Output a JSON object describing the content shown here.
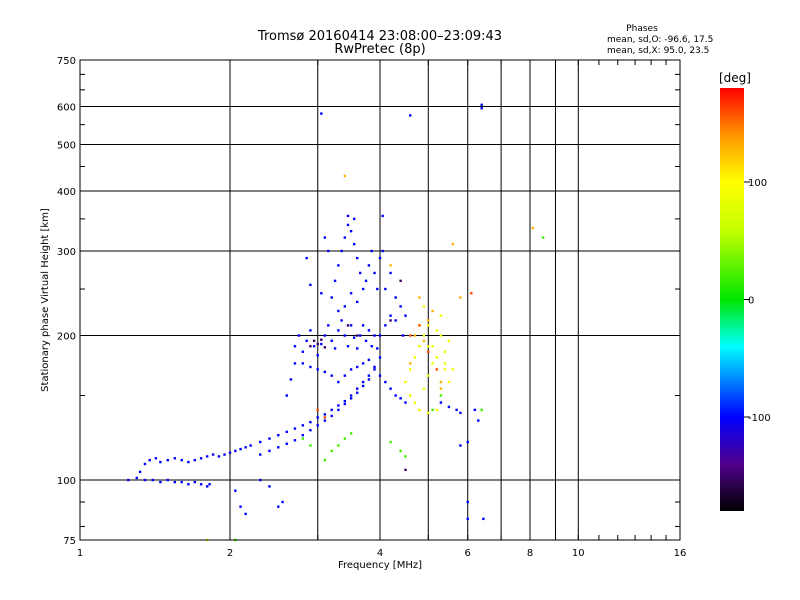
{
  "chart_data": {
    "type": "scatter",
    "title": "Tromsø 20160414 23:08:00–23:09:43",
    "subtitle": "RwPretec (8p)",
    "xlabel": "Frequency [MHz]",
    "ylabel": "Stationary phase Virtual Height [km]",
    "x_scale": "log",
    "y_scale": "log",
    "xlim": [
      1,
      16
    ],
    "ylim": [
      75,
      750
    ],
    "x_ticks": [
      1,
      2,
      4,
      6,
      8,
      10,
      16
    ],
    "x_tick_labels": [
      "1",
      "2",
      "4",
      "6",
      "8",
      "10",
      "16"
    ],
    "x_minor_gridlines": [
      3,
      5,
      7,
      9
    ],
    "y_ticks": [
      75,
      100,
      200,
      300,
      400,
      500,
      600,
      750
    ],
    "y_tick_labels": [
      "75",
      "100",
      "200",
      "300",
      "400",
      "500",
      "600",
      "750"
    ],
    "grid": true,
    "phase_header": "Phases",
    "phase_stats": [
      "mean, sd,O: -96.6, 17.5",
      "mean, sd,X:  95.0, 23.5"
    ],
    "colorbar": {
      "label": "[deg]",
      "range": [
        -180,
        180
      ],
      "ticks": [
        100,
        0,
        -100
      ],
      "tick_labels": [
        "100",
        "0",
        "-100"
      ],
      "colors": [
        "#ff0000",
        "#ff9900",
        "#ffff00",
        "#00ee00",
        "#00ffff",
        "#0000ff",
        "#330066",
        "#000000"
      ]
    },
    "series": [
      {
        "phase_deg": -100,
        "points": [
          [
            1.25,
            100
          ],
          [
            1.3,
            101
          ],
          [
            1.32,
            104
          ],
          [
            1.35,
            108
          ],
          [
            1.38,
            110
          ],
          [
            1.42,
            111
          ],
          [
            1.45,
            109
          ],
          [
            1.5,
            110
          ],
          [
            1.55,
            111
          ],
          [
            1.6,
            110
          ],
          [
            1.65,
            109
          ],
          [
            1.7,
            110
          ],
          [
            1.75,
            111
          ],
          [
            1.8,
            112
          ],
          [
            1.85,
            113
          ],
          [
            1.9,
            112
          ],
          [
            1.95,
            113
          ],
          [
            2.0,
            114
          ],
          [
            2.05,
            115
          ],
          [
            2.1,
            116
          ],
          [
            2.15,
            117
          ],
          [
            2.2,
            118
          ],
          [
            2.3,
            120
          ],
          [
            2.4,
            122
          ],
          [
            2.5,
            124
          ],
          [
            2.6,
            126
          ],
          [
            2.7,
            128
          ],
          [
            2.8,
            130
          ],
          [
            2.9,
            132
          ],
          [
            3.0,
            135
          ],
          [
            3.1,
            137
          ],
          [
            3.2,
            140
          ],
          [
            3.3,
            143
          ],
          [
            3.4,
            146
          ],
          [
            3.5,
            150
          ],
          [
            3.6,
            155
          ],
          [
            3.7,
            160
          ],
          [
            3.8,
            165
          ],
          [
            3.9,
            172
          ],
          [
            4.0,
            180
          ],
          [
            1.4,
            100
          ],
          [
            1.45,
            99
          ],
          [
            1.5,
            100
          ],
          [
            1.55,
            99
          ],
          [
            1.6,
            99
          ],
          [
            1.65,
            98
          ],
          [
            1.7,
            99
          ],
          [
            1.75,
            98
          ],
          [
            1.8,
            97
          ],
          [
            1.82,
            98
          ],
          [
            2.3,
            113
          ],
          [
            2.4,
            115
          ],
          [
            2.5,
            117
          ],
          [
            2.6,
            119
          ],
          [
            2.7,
            121
          ],
          [
            2.8,
            124
          ],
          [
            2.9,
            127
          ],
          [
            3.0,
            130
          ],
          [
            3.1,
            133
          ],
          [
            3.2,
            136
          ],
          [
            3.3,
            140
          ],
          [
            3.4,
            144
          ],
          [
            3.5,
            148
          ],
          [
            3.6,
            152
          ],
          [
            3.7,
            157
          ],
          [
            3.8,
            162
          ],
          [
            2.6,
            150
          ],
          [
            2.65,
            162
          ],
          [
            2.7,
            175
          ],
          [
            2.7,
            190
          ],
          [
            2.75,
            200
          ],
          [
            2.8,
            185
          ],
          [
            2.85,
            195
          ],
          [
            2.9,
            205
          ],
          [
            2.95,
            190
          ],
          [
            3.0,
            182
          ],
          [
            3.05,
            192
          ],
          [
            3.1,
            200
          ],
          [
            3.15,
            210
          ],
          [
            3.2,
            195
          ],
          [
            3.25,
            188
          ],
          [
            3.3,
            205
          ],
          [
            3.35,
            215
          ],
          [
            3.4,
            200
          ],
          [
            3.45,
            190
          ],
          [
            3.5,
            210
          ],
          [
            3.55,
            198
          ],
          [
            3.6,
            188
          ],
          [
            3.65,
            200
          ],
          [
            3.7,
            210
          ],
          [
            3.75,
            195
          ],
          [
            3.8,
            205
          ],
          [
            3.85,
            190
          ],
          [
            3.9,
            200
          ],
          [
            3.95,
            188
          ],
          [
            3.2,
            240
          ],
          [
            3.25,
            260
          ],
          [
            3.3,
            280
          ],
          [
            3.35,
            300
          ],
          [
            3.4,
            320
          ],
          [
            3.45,
            340
          ],
          [
            3.5,
            330
          ],
          [
            3.55,
            310
          ],
          [
            3.6,
            290
          ],
          [
            3.65,
            270
          ],
          [
            3.7,
            250
          ],
          [
            3.4,
            230
          ],
          [
            3.5,
            245
          ],
          [
            3.6,
            235
          ],
          [
            3.3,
            225
          ],
          [
            3.75,
            260
          ],
          [
            3.8,
            280
          ],
          [
            3.85,
            300
          ],
          [
            3.9,
            270
          ],
          [
            3.95,
            250
          ],
          [
            4.0,
            290
          ],
          [
            4.05,
            300
          ],
          [
            3.45,
            355
          ],
          [
            3.55,
            350
          ],
          [
            4.05,
            355
          ],
          [
            3.15,
            300
          ],
          [
            3.1,
            320
          ],
          [
            2.85,
            290
          ],
          [
            2.9,
            255
          ],
          [
            3.05,
            245
          ],
          [
            3.3,
            160
          ],
          [
            3.4,
            165
          ],
          [
            3.5,
            170
          ],
          [
            3.6,
            172
          ],
          [
            3.7,
            175
          ],
          [
            3.8,
            178
          ],
          [
            3.9,
            170
          ],
          [
            4.0,
            165
          ],
          [
            4.1,
            160
          ],
          [
            4.2,
            155
          ],
          [
            4.3,
            150
          ],
          [
            4.4,
            148
          ],
          [
            4.5,
            145
          ],
          [
            3.2,
            165
          ],
          [
            3.1,
            168
          ],
          [
            3.0,
            170
          ],
          [
            2.9,
            172
          ],
          [
            2.8,
            175
          ],
          [
            4.0,
            200
          ],
          [
            4.1,
            210
          ],
          [
            4.2,
            220
          ],
          [
            4.3,
            215
          ],
          [
            4.4,
            230
          ],
          [
            4.5,
            220
          ],
          [
            4.1,
            250
          ],
          [
            4.2,
            270
          ],
          [
            4.3,
            240
          ],
          [
            4.45,
            200
          ],
          [
            5.3,
            145
          ],
          [
            5.5,
            142
          ],
          [
            5.7,
            140
          ],
          [
            5.8,
            138
          ],
          [
            6.2,
            140
          ],
          [
            6.3,
            133
          ],
          [
            6.0,
            120
          ],
          [
            5.8,
            118
          ],
          [
            6.0,
            90
          ],
          [
            6.0,
            83
          ],
          [
            6.45,
            83
          ],
          [
            6.4,
            595
          ],
          [
            6.4,
            605
          ],
          [
            3.05,
            580
          ],
          [
            4.6,
            575
          ],
          [
            1.35,
            100
          ],
          [
            2.05,
            95
          ],
          [
            2.1,
            88
          ],
          [
            2.15,
            85
          ],
          [
            2.5,
            88
          ],
          [
            2.55,
            90
          ],
          [
            2.3,
            100
          ],
          [
            2.4,
            97
          ]
        ]
      },
      {
        "phase_deg": 20,
        "points": [
          [
            3.1,
            110
          ],
          [
            3.2,
            115
          ],
          [
            3.3,
            118
          ],
          [
            3.4,
            122
          ],
          [
            3.5,
            125
          ],
          [
            2.8,
            122
          ],
          [
            2.9,
            118
          ],
          [
            4.2,
            120
          ],
          [
            4.4,
            115
          ],
          [
            4.5,
            112
          ],
          [
            2.05,
            75
          ],
          [
            5.1,
            140
          ],
          [
            5.3,
            150
          ],
          [
            6.4,
            140
          ],
          [
            8.5,
            320
          ]
        ]
      },
      {
        "phase_deg": 90,
        "points": [
          [
            4.5,
            160
          ],
          [
            4.6,
            170
          ],
          [
            4.7,
            180
          ],
          [
            4.8,
            190
          ],
          [
            4.9,
            200
          ],
          [
            5.0,
            210
          ],
          [
            5.1,
            190
          ],
          [
            5.2,
            180
          ],
          [
            5.3,
            200
          ],
          [
            5.4,
            170
          ],
          [
            5.5,
            160
          ],
          [
            4.6,
            150
          ],
          [
            4.7,
            145
          ],
          [
            4.8,
            140
          ],
          [
            4.9,
            155
          ],
          [
            5.0,
            165
          ],
          [
            5.1,
            175
          ],
          [
            5.2,
            205
          ],
          [
            5.3,
            220
          ],
          [
            5.4,
            185
          ],
          [
            5.5,
            195
          ],
          [
            5.6,
            170
          ],
          [
            4.8,
            210
          ],
          [
            4.9,
            230
          ],
          [
            5.0,
            190
          ],
          [
            5.2,
            140
          ],
          [
            5.0,
            138
          ],
          [
            5.4,
            175
          ],
          [
            1.8,
            75
          ]
        ]
      },
      {
        "phase_deg": 130,
        "points": [
          [
            3.4,
            430
          ],
          [
            5.8,
            240
          ],
          [
            5.0,
            215
          ],
          [
            4.9,
            195
          ],
          [
            4.6,
            175
          ],
          [
            5.3,
            160
          ],
          [
            8.1,
            335
          ],
          [
            4.2,
            280
          ],
          [
            5.6,
            310
          ],
          [
            4.8,
            240
          ],
          [
            5.1,
            225
          ],
          [
            4.7,
            200
          ],
          [
            5.3,
            155
          ]
        ]
      },
      {
        "phase_deg": 160,
        "points": [
          [
            3.0,
            140
          ],
          [
            3.1,
            135
          ],
          [
            4.8,
            210
          ],
          [
            5.0,
            185
          ],
          [
            6.1,
            245
          ],
          [
            4.6,
            200
          ],
          [
            5.2,
            170
          ]
        ]
      },
      {
        "phase_deg": -150,
        "points": [
          [
            2.9,
            190
          ],
          [
            2.95,
            195
          ],
          [
            3.0,
            192
          ],
          [
            3.05,
            196
          ],
          [
            3.1,
            189
          ],
          [
            4.5,
            105
          ],
          [
            4.2,
            215
          ],
          [
            3.6,
            200
          ],
          [
            3.45,
            210
          ],
          [
            4.4,
            260
          ]
        ]
      }
    ]
  }
}
